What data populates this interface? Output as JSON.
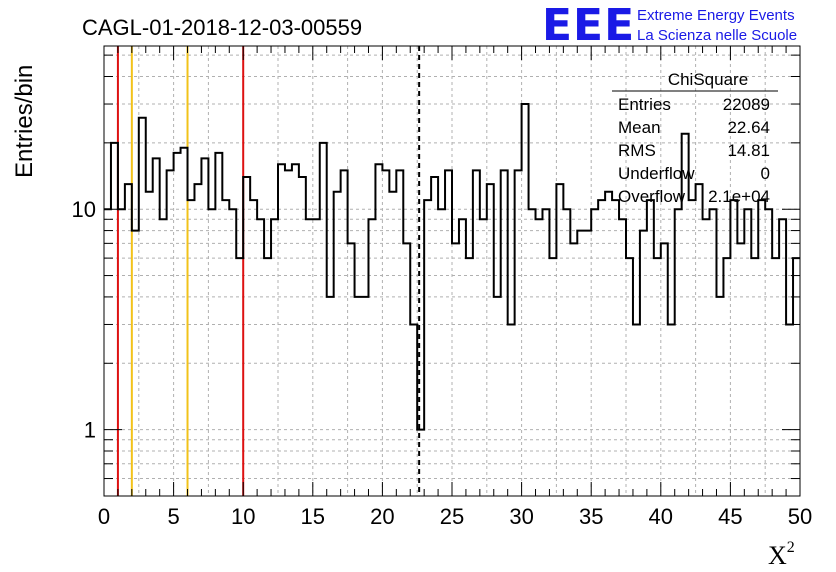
{
  "chart_data": {
    "type": "histogram",
    "title": "CAGL-01-2018-12-03-00559",
    "xlabel": "X",
    "xlabel_superscript": "2",
    "ylabel": "Entries/bin",
    "x_range": [
      0,
      50
    ],
    "y_range": [
      0.5,
      55
    ],
    "y_scale": "log",
    "bin_width": 0.5,
    "x_ticks": [
      "0",
      "5",
      "10",
      "15",
      "20",
      "25",
      "30",
      "35",
      "40",
      "45",
      "50"
    ],
    "y_ticks": [
      "1",
      "10"
    ],
    "grid": true,
    "counts": [
      10,
      20,
      10,
      13,
      8,
      26,
      12,
      17,
      9,
      15,
      18,
      19,
      11,
      13,
      17,
      10,
      18,
      11,
      10,
      6,
      14,
      11,
      9,
      6,
      9,
      16,
      15,
      16,
      14,
      9,
      9,
      20,
      4,
      12,
      15,
      7,
      4,
      4,
      9,
      16,
      15,
      12,
      15,
      7,
      3,
      1,
      11,
      14,
      10,
      15,
      7,
      9,
      6,
      15,
      9,
      13,
      4,
      15,
      3,
      15,
      30,
      10,
      9,
      10,
      6,
      13,
      10,
      7,
      8,
      8,
      10,
      11,
      12,
      11,
      9,
      6,
      3,
      8,
      11,
      6,
      7,
      3,
      10,
      22,
      11,
      13,
      9,
      10,
      4,
      6,
      11,
      7,
      10,
      6,
      11,
      10,
      6,
      9,
      3,
      6
    ],
    "vertical_lines": [
      {
        "x": 1,
        "color": "#dd1111",
        "style": "solid"
      },
      {
        "x": 2,
        "color": "#f2c21a",
        "style": "solid"
      },
      {
        "x": 6,
        "color": "#f2c21a",
        "style": "solid"
      },
      {
        "x": 10,
        "color": "#dd1111",
        "style": "solid"
      },
      {
        "x": 22.64,
        "color": "#000000",
        "style": "dashed"
      }
    ],
    "stats_box": {
      "name": "ChiSquare",
      "rows": [
        {
          "label": "Entries",
          "value": "22089"
        },
        {
          "label": "Mean",
          "value": "22.64"
        },
        {
          "label": "RMS",
          "value": "14.81"
        },
        {
          "label": "Underflow",
          "value": "0"
        },
        {
          "label": "Overflow",
          "value": "2.1e+04"
        }
      ]
    }
  },
  "logo": {
    "mark": "EEE",
    "line1": "Extreme Energy Events",
    "line2": "La Scienza nelle Scuole"
  },
  "colors": {
    "histogram": "#000000",
    "grid": "#b0b0b0",
    "red_line": "#dd1111",
    "yellow_line": "#f2c21a",
    "logo_blue": "#1a1ae6"
  }
}
